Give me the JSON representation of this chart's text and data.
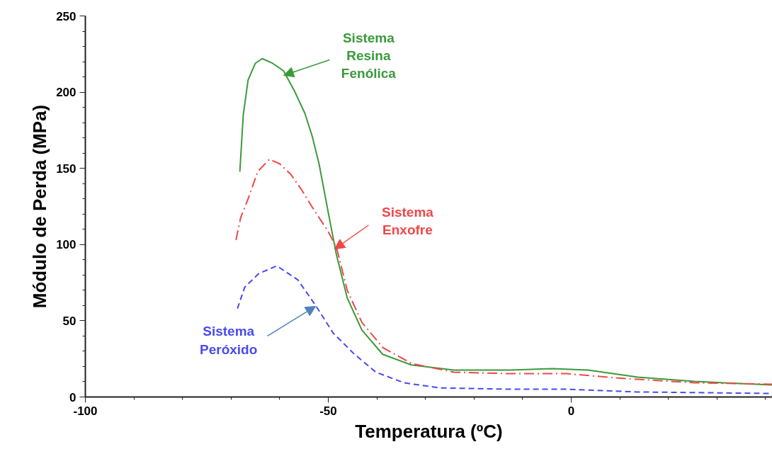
{
  "chart_data": {
    "type": "line",
    "xlabel": "Temperatura (ºC)",
    "ylabel": "Módulo de Perda (MPa)",
    "xlim": [
      -100,
      41.4
    ],
    "xticks": [
      -100,
      -50,
      0
    ],
    "ylim": [
      0,
      250
    ],
    "yticks": [
      0,
      50,
      100,
      150,
      200,
      250
    ],
    "series": [
      {
        "color": "#3a9a3a",
        "line_style": "solid",
        "x": [
          -68.2,
          -67.5,
          -66.5,
          -65,
          -63.6,
          -61.5,
          -59.2,
          -57,
          -54.8,
          -53.3,
          -51.9,
          -50,
          -48.3,
          -46.1,
          -43.1,
          -38.8,
          -32.9,
          -24.2,
          -12.5,
          -3.8,
          3.5,
          13.7,
          25.4,
          41.4
        ],
        "values": [
          147.8,
          185,
          208,
          219,
          222,
          219,
          214,
          201,
          186,
          171,
          153,
          121,
          93,
          65,
          44,
          28,
          21,
          17.7,
          17.7,
          18.6,
          17.7,
          13,
          10.2,
          7.9
        ]
      },
      {
        "color": "#f04848",
        "line_style": "dashdot",
        "x": [
          -69,
          -68,
          -66.5,
          -64.5,
          -62.1,
          -60,
          -57.7,
          -55.5,
          -53.4,
          -50.1,
          -48.3,
          -46.1,
          -43.1,
          -38.8,
          -32.9,
          -24.2,
          -12.5,
          -0.9,
          9.3,
          25.4,
          41.4
        ],
        "values": [
          103,
          118,
          130,
          148,
          156,
          153,
          146,
          136,
          125,
          109,
          98,
          70,
          49,
          32.5,
          22,
          16.3,
          15.3,
          15.3,
          12.5,
          9.3,
          8.4
        ]
      },
      {
        "color": "#4a4af0",
        "line_style": "dashed",
        "x": [
          -68.7,
          -67.2,
          -64.3,
          -60.6,
          -56.3,
          -52.6,
          -49,
          -44.6,
          -40.2,
          -34.4,
          -27.1,
          -12.5,
          -0.9,
          13.7,
          41.4
        ],
        "values": [
          58,
          72,
          81,
          86,
          77,
          60,
          42,
          28,
          16.3,
          9.3,
          6,
          5.1,
          5.1,
          3.3,
          2.3
        ]
      }
    ],
    "annotations": [
      {
        "text": "Sistema Resina Fenólica",
        "x": -59.2,
        "y": 211
      },
      {
        "text": "Sistema Enxofre",
        "x": -48.7,
        "y": 97
      },
      {
        "text": "Sistema Peróxido",
        "x": -52.6,
        "y": 59.5
      }
    ]
  }
}
